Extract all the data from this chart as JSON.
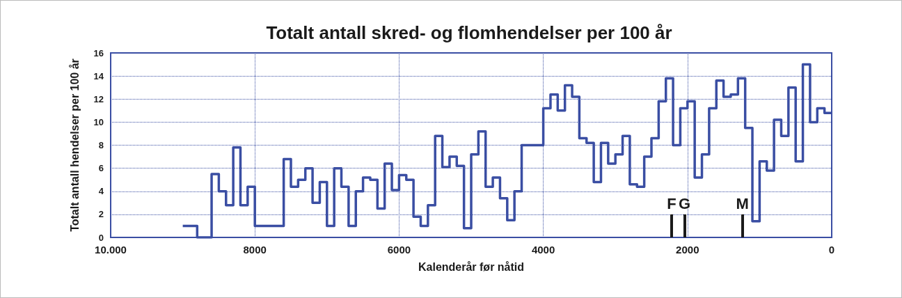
{
  "chart_data": {
    "type": "step",
    "title": "Totalt antall skred- og flomhendelser per 100 år",
    "xlabel": "Kalenderår før nåtid",
    "ylabel": "Totalt antall hendelser per 100 år",
    "x": [
      9000,
      8800,
      8600,
      8500,
      8400,
      8300,
      8200,
      8100,
      8000,
      7600,
      7500,
      7400,
      7300,
      7200,
      7100,
      7000,
      6900,
      6800,
      6700,
      6600,
      6500,
      6400,
      6300,
      6200,
      6100,
      6000,
      5900,
      5800,
      5700,
      5600,
      5500,
      5400,
      5300,
      5200,
      5100,
      5000,
      4900,
      4800,
      4700,
      4600,
      4500,
      4400,
      4300,
      4000,
      3900,
      3800,
      3700,
      3600,
      3500,
      3400,
      3300,
      3200,
      3100,
      3000,
      2900,
      2800,
      2700,
      2600,
      2500,
      2400,
      2300,
      2200,
      2100,
      2000,
      1900,
      1800,
      1700,
      1600,
      1500,
      1400,
      1300,
      1200,
      1100,
      1000,
      900,
      800,
      700,
      600,
      500,
      400,
      300,
      200,
      100,
      0
    ],
    "series": [
      {
        "color": "#3a4ea3",
        "values": [
          1,
          0,
          5.5,
          4,
          2.8,
          7.8,
          2.8,
          4.4,
          1,
          6.8,
          4.4,
          5,
          6,
          3,
          4.8,
          1,
          6,
          4.4,
          1,
          4,
          5.2,
          5,
          2.5,
          6.4,
          4.1,
          5.4,
          5,
          1.8,
          1,
          2.8,
          8.8,
          6.1,
          7,
          6.2,
          0.8,
          7.2,
          9.2,
          4.4,
          5.2,
          3.4,
          1.5,
          4,
          8,
          11.2,
          12.4,
          11,
          13.2,
          12.2,
          8.6,
          8.2,
          4.8,
          8.2,
          6.4,
          7.2,
          8.8,
          4.6,
          4.4,
          7,
          8.6,
          11.8,
          13.8,
          8,
          11.2,
          11.8,
          5.2,
          7.2,
          11.2,
          13.6,
          12.2,
          12.4,
          13.8,
          9.5,
          1.4,
          6.6,
          5.8,
          10.2,
          8.8,
          13,
          6.6,
          15,
          10,
          11.2,
          10.8,
          10.8
        ]
      }
    ],
    "xlim": [
      10000,
      0
    ],
    "xticks": [
      {
        "value": 10000,
        "label": "10.000"
      },
      8000,
      6000,
      4000,
      2000,
      0
    ],
    "ylim": [
      0,
      16
    ],
    "yticks": [
      0,
      2,
      4,
      6,
      8,
      10,
      12,
      14,
      16
    ],
    "ref_lines": [
      {
        "axis": "x",
        "value": 2220,
        "label": "F",
        "color": "#1a1a1a"
      },
      {
        "axis": "x",
        "value": 2040,
        "label": "G",
        "color": "#1a1a1a"
      },
      {
        "axis": "x",
        "value": 1240,
        "label": "M",
        "color": "#1a1a1a"
      }
    ],
    "grid": true,
    "marker": "none",
    "line_style": "solid"
  }
}
